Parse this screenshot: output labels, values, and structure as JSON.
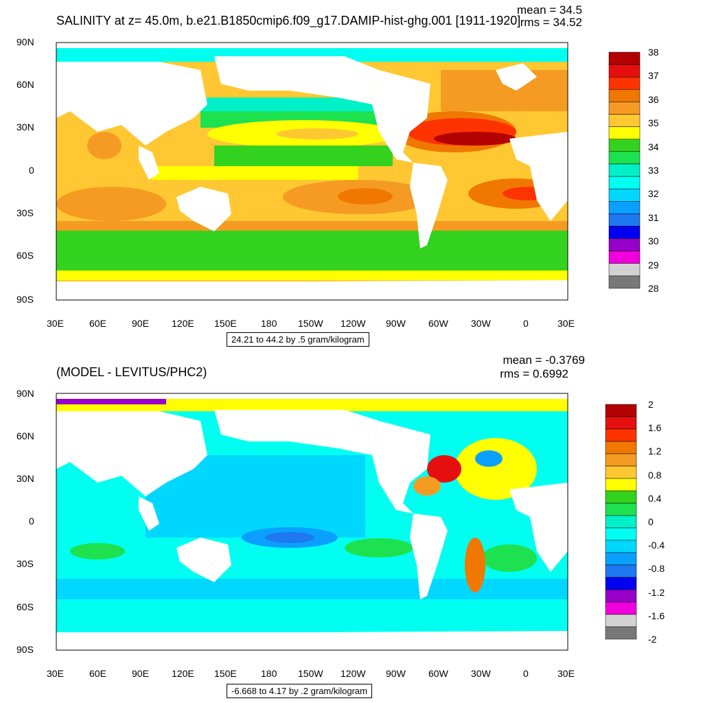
{
  "top": {
    "title": "SALINITY at z=  45.0m, b.e21.B1850cmip6.f09_g17.DAMIP-hist-ghg.001 [1911-1920]",
    "mean": "mean = 34.5",
    "rms": "rms = 34.52",
    "contour_info": "24.21 to 44.2 by .5 gram/kilogram",
    "colorbar": {
      "labels": [
        "38",
        "37",
        "36",
        "35",
        "34",
        "33",
        "32",
        "31",
        "30",
        "29",
        "28"
      ],
      "colors": [
        "#b30000",
        "#e60f0f",
        "#ff3300",
        "#f07800",
        "#f59b23",
        "#ffc832",
        "#ffff00",
        "#32d21e",
        "#1ee150",
        "#00f0c8",
        "#00fff0",
        "#00d7ff",
        "#0aa0ff",
        "#1e78f0",
        "#0000f0",
        "#9600c8",
        "#f000dc",
        "#d2d2d2",
        "#787878"
      ]
    }
  },
  "bottom": {
    "title": "(MODEL - LEVITUS/PHC2)",
    "mean": "mean = -0.3769",
    "rms": "rms = 0.6992",
    "contour_info": "-6.668 to 4.17 by .2 gram/kilogram",
    "colorbar": {
      "labels": [
        "2",
        "1.6",
        "1.2",
        "0.8",
        "0.4",
        "0",
        "-0.4",
        "-0.8",
        "-1.2",
        "-1.6",
        "-2"
      ],
      "colors": [
        "#b30000",
        "#e60f0f",
        "#ff3300",
        "#f07800",
        "#f59b23",
        "#ffc832",
        "#ffff00",
        "#32d21e",
        "#1ee150",
        "#00f0c8",
        "#00fff0",
        "#00d7ff",
        "#0aa0ff",
        "#1e78f0",
        "#0000f0",
        "#9600c8",
        "#f000dc",
        "#d2d2d2",
        "#787878"
      ]
    }
  },
  "axes": {
    "lat_labels": [
      "90N",
      "60N",
      "30N",
      "0",
      "30S",
      "60S",
      "90S"
    ],
    "lon_labels": [
      "30E",
      "60E",
      "90E",
      "120E",
      "150E",
      "180",
      "150W",
      "120W",
      "90W",
      "60W",
      "30W",
      "0",
      "30E"
    ]
  }
}
